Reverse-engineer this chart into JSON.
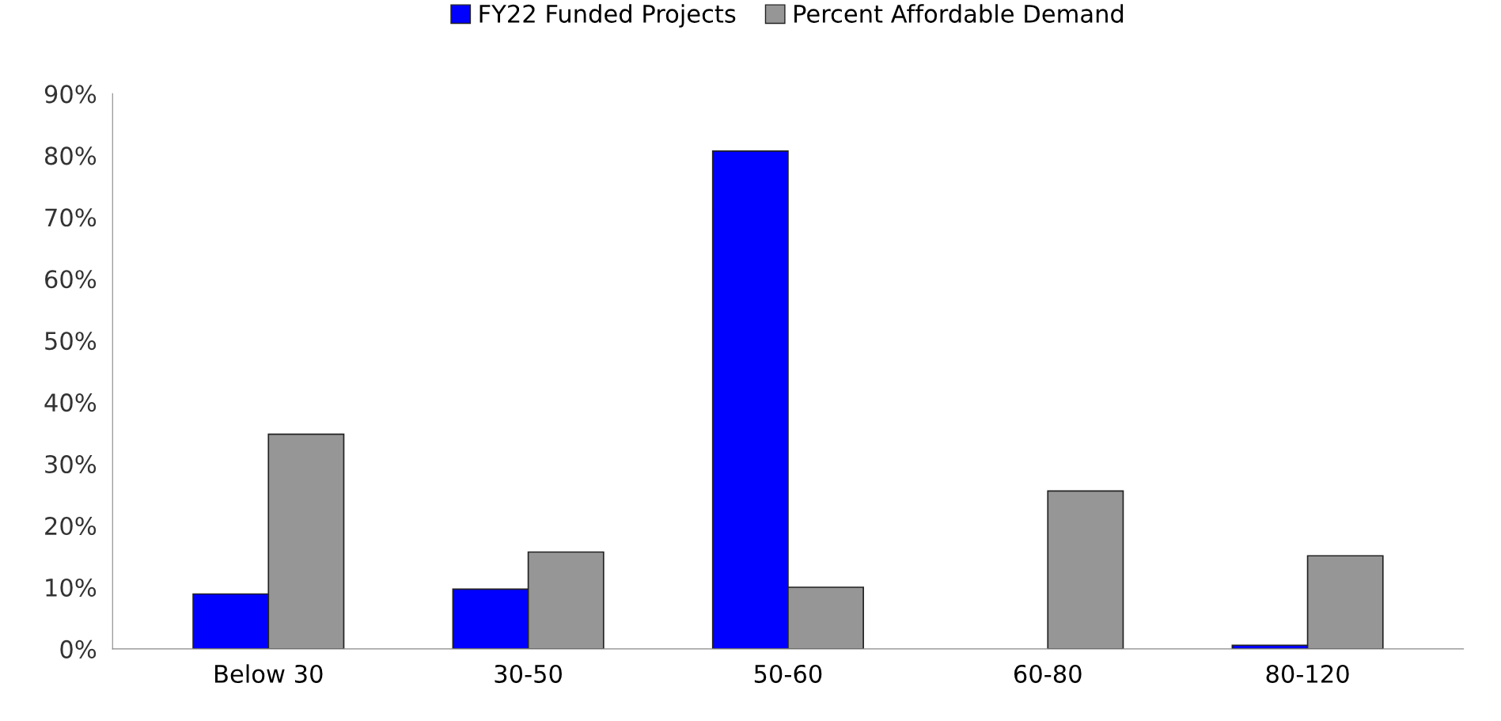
{
  "chart_data": {
    "type": "bar",
    "categories": [
      "Below 30",
      "30-50",
      "50-60",
      "60-80",
      "80-120"
    ],
    "series": [
      {
        "name": "FY22 Funded Projects",
        "color": "#0000ff",
        "values": [
          8.9,
          9.7,
          80.7,
          null,
          0.6
        ]
      },
      {
        "name": "Percent Affordable Demand",
        "color": "#969696",
        "values": [
          34.8,
          15.7,
          10.0,
          25.6,
          15.1
        ]
      }
    ],
    "ylim": [
      0,
      90
    ],
    "yticks": [
      {
        "value": 0,
        "label": "0%"
      },
      {
        "value": 10,
        "label": "10%"
      },
      {
        "value": 20,
        "label": "20%"
      },
      {
        "value": 30,
        "label": "30%"
      },
      {
        "value": 40,
        "label": "40%"
      },
      {
        "value": 50,
        "label": "50%"
      },
      {
        "value": 60,
        "label": "60%"
      },
      {
        "value": 70,
        "label": "70%"
      },
      {
        "value": 80,
        "label": "80%"
      },
      {
        "value": 90,
        "label": "90%"
      }
    ],
    "grid": false,
    "legend": "top"
  }
}
